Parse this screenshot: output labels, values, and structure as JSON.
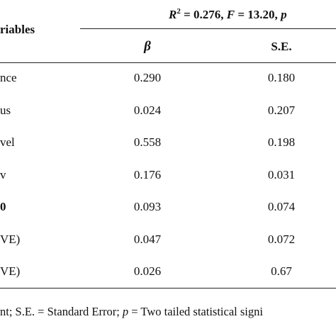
{
  "header": {
    "stats": {
      "r_label": "R",
      "r_superscript": "2",
      "r_value": " = 0.276, ",
      "f_label": "F",
      "f_value": " = 13.20, ",
      "p_label": "p"
    },
    "variables_label": "riables",
    "beta_label": "β",
    "se_label": "S.E."
  },
  "table": {
    "rows": [
      {
        "label": "nce",
        "beta": "0.290",
        "se": "0.180",
        "bold": false
      },
      {
        "label": "us",
        "beta": "0.024",
        "se": "0.207",
        "bold": false
      },
      {
        "label": "vel",
        "beta": "0.558",
        "se": "0.198",
        "bold": false
      },
      {
        "label": "v",
        "beta": "0.176",
        "se": "0.031",
        "bold": false
      },
      {
        "label": "0",
        "beta": "0.093",
        "se": "0.074",
        "bold": true
      },
      {
        "label": "VE)",
        "beta": "0.047",
        "se": "0.072",
        "bold": false
      },
      {
        "label": "VE)",
        "beta": "0.026",
        "se": "0.67",
        "bold": false
      }
    ]
  },
  "footer": {
    "before": "nt; S.E. = Standard Error; ",
    "p_label": "p",
    "after": " = Two tailed statistical signi"
  }
}
